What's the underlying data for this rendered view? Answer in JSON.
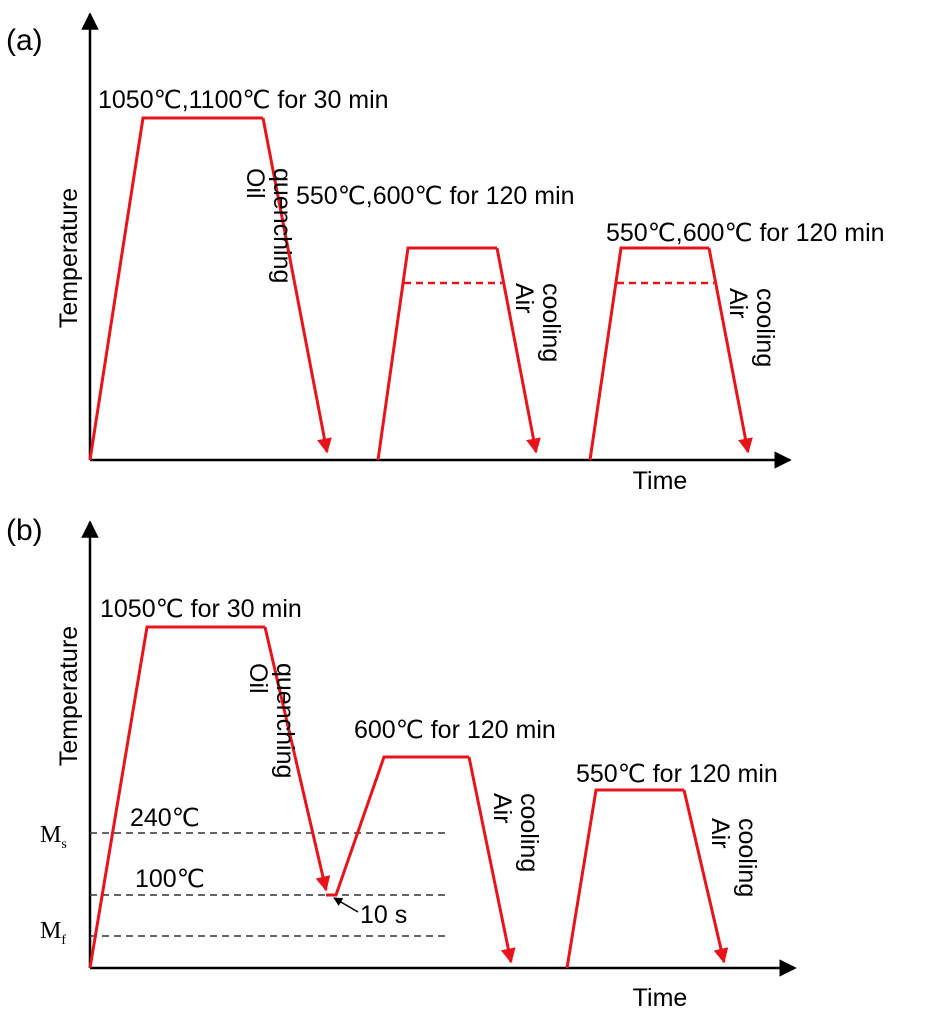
{
  "panels": {
    "a": {
      "tag": "(a)",
      "ylabel": "Temperature",
      "xlabel": "Time",
      "austenitize_label": "1050℃,1100℃ for 30 min",
      "quench_label": [
        "Oil",
        "quenching"
      ],
      "temper1_label": "550℃,600℃ for 120 min",
      "temper2_label": "550℃,600℃ for 120 min",
      "cool1_label": [
        "Air",
        "cooling"
      ],
      "cool2_label": [
        "Air",
        "cooling"
      ]
    },
    "b": {
      "tag": "(b)",
      "ylabel": "Temperature",
      "xlabel": "Time",
      "austenitize_label": "1050℃ for 30 min",
      "quench_label": [
        "Oil",
        "quenching"
      ],
      "temper1_label": "600℃ for 120 min",
      "temper2_label": "550℃ for 120 min",
      "cool1_label": [
        "Air",
        "cooling"
      ],
      "cool2_label": [
        "Air",
        "cooling"
      ],
      "ms_temp": "240℃",
      "qp_temp": "100℃",
      "hold_time": "10 s",
      "ms_symbol": "M",
      "ms_sub": "s",
      "mf_symbol": "M",
      "mf_sub": "f"
    }
  },
  "colors": {
    "curve": "#e8141c",
    "axis": "#000000",
    "dashed": "#333333"
  }
}
